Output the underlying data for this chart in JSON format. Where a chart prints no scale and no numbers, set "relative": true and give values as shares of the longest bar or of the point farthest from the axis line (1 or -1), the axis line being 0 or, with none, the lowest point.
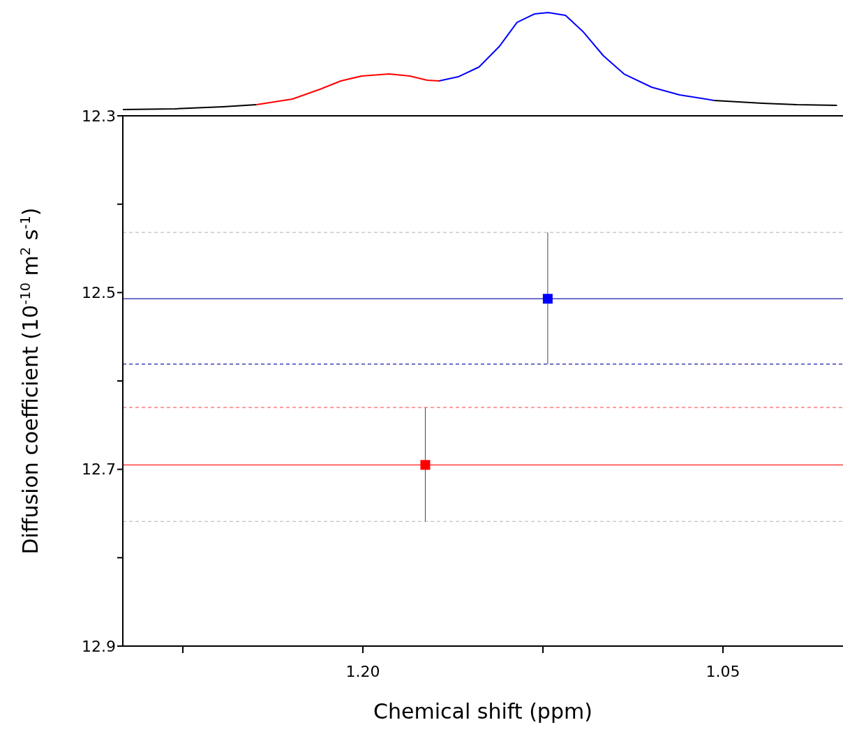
{
  "chart_data": [
    {
      "type": "line",
      "relative": true,
      "tick_labels": false,
      "xlim": [
        1.3,
        1.0
      ],
      "series": [
        {
          "color": "#000000",
          "x": [
            1.3,
            1.2783,
            1.2582,
            1.2443
          ],
          "values": [
            0.061,
            0.068,
            0.088,
            0.108
          ]
        },
        {
          "color": "#ff0000",
          "x": [
            1.2443,
            1.2294,
            1.2179,
            1.2092,
            1.2006,
            1.1891,
            1.1804,
            1.1732,
            1.1683
          ],
          "values": [
            0.108,
            0.162,
            0.257,
            0.338,
            0.385,
            0.405,
            0.385,
            0.345,
            0.338
          ]
        },
        {
          "color": "#0000ff",
          "x": [
            1.1683,
            1.1603,
            1.1516,
            1.143,
            1.1358,
            1.1286,
            1.1228,
            1.1156,
            1.1084,
            1.0998,
            1.0912,
            1.0797,
            1.0681,
            1.0537
          ],
          "values": [
            0.338,
            0.378,
            0.473,
            0.676,
            0.905,
            0.986,
            1,
            0.973,
            0.818,
            0.581,
            0.405,
            0.277,
            0.203,
            0.149
          ]
        },
        {
          "color": "#000000",
          "x": [
            1.0537,
            1.0336,
            1.0192,
            1.0025
          ],
          "values": [
            0.149,
            0.122,
            0.108,
            0.101
          ]
        }
      ]
    },
    {
      "type": "scatter",
      "xlabel": "Chemical shift (ppm)",
      "ylabel": "Diffusion coefficient (10$^{-10}$ m$^{2}$ s$^{-1}$)",
      "marker": "square",
      "grid": false,
      "xlim": [
        1.3,
        1.0
      ],
      "xticks": [
        {
          "value": 1.275,
          "label": null
        },
        {
          "value": 1.2,
          "label": "1.20"
        },
        {
          "value": 1.125,
          "label": null
        },
        {
          "value": 1.05,
          "label": "1.05"
        }
      ],
      "ylim": [
        12.9,
        12.3
      ],
      "yticks": [
        12.3,
        {
          "value": 12.4,
          "label": null
        },
        12.5,
        {
          "value": 12.6,
          "label": null
        },
        12.7,
        {
          "value": 12.8,
          "label": null
        },
        12.9
      ],
      "series": [
        {
          "color": "#0000ff",
          "x": [
            1.123
          ],
          "values": [
            12.507
          ],
          "errors": [
            [
              12.432,
              12.581
            ]
          ]
        },
        {
          "color": "#ff0000",
          "x": [
            1.174
          ],
          "values": [
            12.695
          ],
          "errors": [
            [
              12.63,
              12.759
            ]
          ]
        }
      ],
      "ref_lines": [
        {
          "axis": "y",
          "value": 12.432,
          "color": "#c8bcc8",
          "line_style": "dashed"
        },
        {
          "axis": "y",
          "value": 12.507,
          "color": "#1a1aa8",
          "line_style": "solid"
        },
        {
          "axis": "y",
          "value": 12.581,
          "color": "#1a1aa8",
          "line_style": "dashed"
        },
        {
          "axis": "y",
          "value": 12.63,
          "color": "#ff4040",
          "line_style": "dashed"
        },
        {
          "axis": "y",
          "value": 12.695,
          "color": "#ff2020",
          "line_style": "solid"
        },
        {
          "axis": "y",
          "value": 12.759,
          "color": "#c8bcc8",
          "line_style": "dashed"
        }
      ]
    }
  ]
}
